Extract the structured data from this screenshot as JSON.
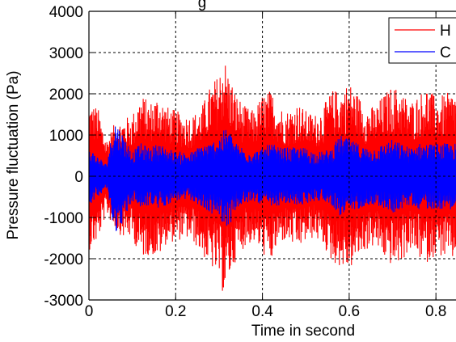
{
  "chart_data": {
    "type": "line",
    "title": "",
    "title_fragment": "g",
    "xlabel": "Time in second",
    "ylabel": "Pressure fluctuation (Pa)",
    "xlim": [
      0,
      0.85
    ],
    "ylim": [
      -3000,
      4000
    ],
    "x_ticks": [
      0,
      0.2,
      0.4,
      0.6,
      0.8
    ],
    "x_tick_labels": [
      "0",
      "0.2",
      "0.4",
      "0.6",
      "0.8"
    ],
    "y_ticks": [
      -3000,
      -2000,
      -1000,
      0,
      1000,
      2000,
      3000,
      4000
    ],
    "y_tick_labels": [
      "-3000",
      "-2000",
      "-1000",
      "0",
      "1000",
      "2000",
      "3000",
      "4000"
    ],
    "grid": true,
    "legend_position": "top-right",
    "series": [
      {
        "name": "H",
        "color": "#ff0000",
        "envelope": {
          "x": [
            0,
            0.02,
            0.04,
            0.06,
            0.08,
            0.1,
            0.12,
            0.14,
            0.16,
            0.18,
            0.2,
            0.22,
            0.24,
            0.26,
            0.28,
            0.3,
            0.31,
            0.32,
            0.34,
            0.36,
            0.38,
            0.4,
            0.42,
            0.44,
            0.46,
            0.48,
            0.5,
            0.52,
            0.54,
            0.56,
            0.58,
            0.6,
            0.62,
            0.64,
            0.66,
            0.68,
            0.7,
            0.72,
            0.74,
            0.76,
            0.78,
            0.8,
            0.82,
            0.85
          ],
          "max": [
            1800,
            1700,
            900,
            1300,
            1400,
            1500,
            2000,
            1800,
            2000,
            1700,
            1600,
            1500,
            1500,
            1700,
            2200,
            2500,
            3000,
            2600,
            2000,
            1700,
            1600,
            2000,
            2100,
            1700,
            1600,
            1800,
            1600,
            1500,
            1700,
            2100,
            2100,
            2300,
            2000,
            1700,
            1700,
            2000,
            2200,
            2100,
            1800,
            2000,
            2200,
            1900,
            2000,
            2100
          ],
          "min": [
            -1800,
            -1600,
            -900,
            -1300,
            -1500,
            -1500,
            -2000,
            -1900,
            -2000,
            -1600,
            -1600,
            -1500,
            -1600,
            -1900,
            -2200,
            -2500,
            -2900,
            -2600,
            -2000,
            -1700,
            -1600,
            -1900,
            -2100,
            -1600,
            -1600,
            -1800,
            -1600,
            -1500,
            -1700,
            -2100,
            -2200,
            -2300,
            -2000,
            -1800,
            -1700,
            -2000,
            -2200,
            -2100,
            -1800,
            -2000,
            -2100,
            -1900,
            -2000,
            -2100
          ]
        }
      },
      {
        "name": "C",
        "color": "#0000ff",
        "envelope": {
          "x": [
            0,
            0.02,
            0.04,
            0.06,
            0.08,
            0.1,
            0.12,
            0.14,
            0.16,
            0.18,
            0.2,
            0.22,
            0.24,
            0.26,
            0.28,
            0.3,
            0.32,
            0.34,
            0.36,
            0.38,
            0.4,
            0.42,
            0.44,
            0.46,
            0.48,
            0.5,
            0.52,
            0.54,
            0.56,
            0.58,
            0.6,
            0.62,
            0.64,
            0.66,
            0.68,
            0.7,
            0.72,
            0.74,
            0.76,
            0.78,
            0.8,
            0.82,
            0.85
          ],
          "max": [
            700,
            500,
            300,
            1400,
            1000,
            600,
            800,
            700,
            800,
            700,
            600,
            600,
            600,
            800,
            800,
            1000,
            1200,
            800,
            700,
            600,
            700,
            800,
            700,
            700,
            700,
            700,
            600,
            600,
            700,
            1000,
            900,
            800,
            700,
            700,
            800,
            900,
            800,
            700,
            800,
            800,
            800,
            800,
            800
          ],
          "min": [
            -700,
            -500,
            -300,
            -1400,
            -1100,
            -600,
            -800,
            -700,
            -800,
            -700,
            -600,
            -600,
            -600,
            -800,
            -900,
            -1000,
            -1300,
            -800,
            -700,
            -600,
            -700,
            -800,
            -700,
            -700,
            -700,
            -700,
            -600,
            -600,
            -700,
            -1000,
            -900,
            -800,
            -700,
            -700,
            -800,
            -900,
            -800,
            -700,
            -800,
            -800,
            -800,
            -800,
            -800
          ]
        }
      }
    ]
  }
}
